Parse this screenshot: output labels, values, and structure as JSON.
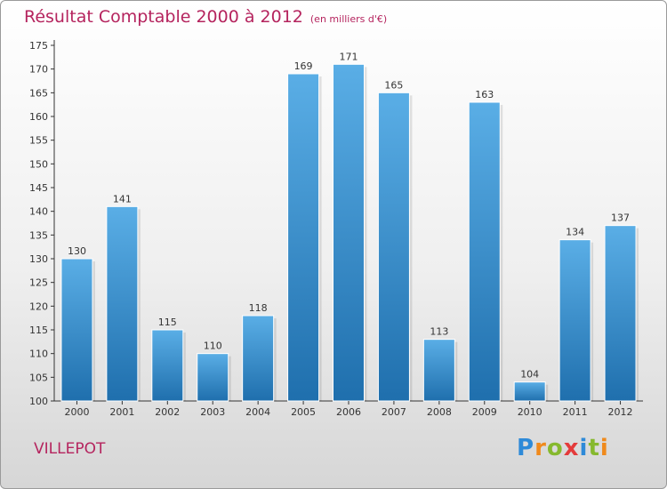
{
  "header": {
    "title": "Résultat Comptable 2000 à 2012",
    "subtitle": "(en milliers d'€)"
  },
  "commune": "VILLEPOT",
  "logo": {
    "letters": [
      "P",
      "r",
      "o",
      "x",
      "i",
      "t",
      "i"
    ],
    "colors": [
      "#2e8ad8",
      "#f08a1c",
      "#86b92e",
      "#e43b3b",
      "#2e8ad8",
      "#86b92e",
      "#f08a1c"
    ]
  },
  "colors": {
    "bar_top": "#5aaee6",
    "bar_bottom": "#1f6fad",
    "accent": "#b5245e"
  },
  "chart_data": {
    "type": "bar",
    "categories": [
      "2000",
      "2001",
      "2002",
      "2003",
      "2004",
      "2005",
      "2006",
      "2007",
      "2008",
      "2009",
      "2010",
      "2011",
      "2012"
    ],
    "values": [
      130,
      141,
      115,
      110,
      118,
      169,
      171,
      165,
      113,
      163,
      104,
      134,
      137
    ],
    "ylim": [
      100,
      175
    ],
    "yticks": [
      100,
      105,
      110,
      115,
      120,
      125,
      130,
      135,
      140,
      145,
      150,
      155,
      160,
      165,
      170,
      175
    ],
    "grid": false,
    "data_labels": true
  }
}
